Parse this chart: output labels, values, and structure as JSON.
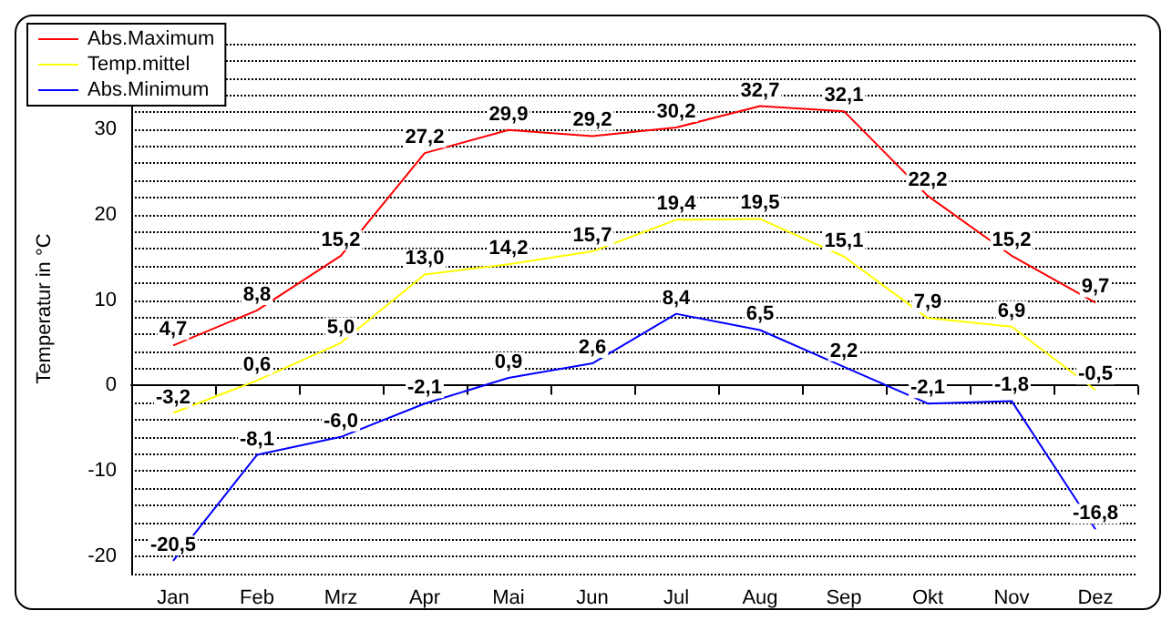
{
  "chart_data": {
    "type": "line",
    "ylabel": "Temperatur in °C",
    "categories": [
      "Jan",
      "Feb",
      "Mrz",
      "Apr",
      "Mai",
      "Jun",
      "Jul",
      "Aug",
      "Sep",
      "Okt",
      "Nov",
      "Dez"
    ],
    "series": [
      {
        "name": "Abs.Maximum",
        "color": "#ff0000",
        "values": [
          4.7,
          8.8,
          15.2,
          27.2,
          29.9,
          29.2,
          30.2,
          32.7,
          32.1,
          22.2,
          15.2,
          9.7
        ],
        "value_labels": [
          "4,7",
          "8,8",
          "15,2",
          "27,2",
          "29,9",
          "29,2",
          "30,2",
          "32,7",
          "32,1",
          "22,2",
          "15,2",
          "9,7"
        ]
      },
      {
        "name": "Temp.mittel",
        "color": "#ffff00",
        "values": [
          -3.2,
          0.6,
          5.0,
          13.0,
          14.2,
          15.7,
          19.4,
          19.5,
          15.1,
          7.9,
          6.9,
          -0.5
        ],
        "value_labels": [
          "-3,2",
          "0,6",
          "5,0",
          "13,0",
          "14,2",
          "15,7",
          "19,4",
          "19,5",
          "15,1",
          "7,9",
          "6,9",
          "-0,5"
        ]
      },
      {
        "name": "Abs.Minimum",
        "color": "#0000ff",
        "values": [
          -20.5,
          -8.1,
          -6.0,
          -2.1,
          0.9,
          2.6,
          8.4,
          6.5,
          2.2,
          -2.1,
          -1.8,
          -16.8
        ],
        "value_labels": [
          "-20,5",
          "-8,1",
          "-6,0",
          "-2,1",
          "0,9",
          "2,6",
          "8,4",
          "6,5",
          "2,2",
          "-2,1",
          "-1,8",
          "-16,8"
        ]
      }
    ],
    "ylim": [
      -22,
      40
    ],
    "yticks": [
      {
        "value": -22,
        "label": null
      },
      -20,
      {
        "value": -18,
        "label": null
      },
      {
        "value": -16,
        "label": null
      },
      {
        "value": -14,
        "label": null
      },
      {
        "value": -12,
        "label": null
      },
      -10,
      {
        "value": -8,
        "label": null
      },
      {
        "value": -6,
        "label": null
      },
      {
        "value": -4,
        "label": null
      },
      {
        "value": -2,
        "label": null
      },
      0,
      {
        "value": 2,
        "label": null
      },
      {
        "value": 4,
        "label": null
      },
      {
        "value": 6,
        "label": null
      },
      {
        "value": 8,
        "label": null
      },
      10,
      {
        "value": 12,
        "label": null
      },
      {
        "value": 14,
        "label": null
      },
      {
        "value": 16,
        "label": null
      },
      {
        "value": 18,
        "label": null
      },
      20,
      {
        "value": 22,
        "label": null
      },
      {
        "value": 24,
        "label": null
      },
      {
        "value": 26,
        "label": null
      },
      {
        "value": 28,
        "label": null
      },
      30,
      {
        "value": 32,
        "label": null
      },
      {
        "value": 34,
        "label": null
      },
      {
        "value": 36,
        "label": null
      },
      {
        "value": 38,
        "label": null
      },
      {
        "value": 40,
        "label": null
      }
    ],
    "grid": "y",
    "legend": "top left",
    "marker": "none",
    "line_style": "solid"
  }
}
